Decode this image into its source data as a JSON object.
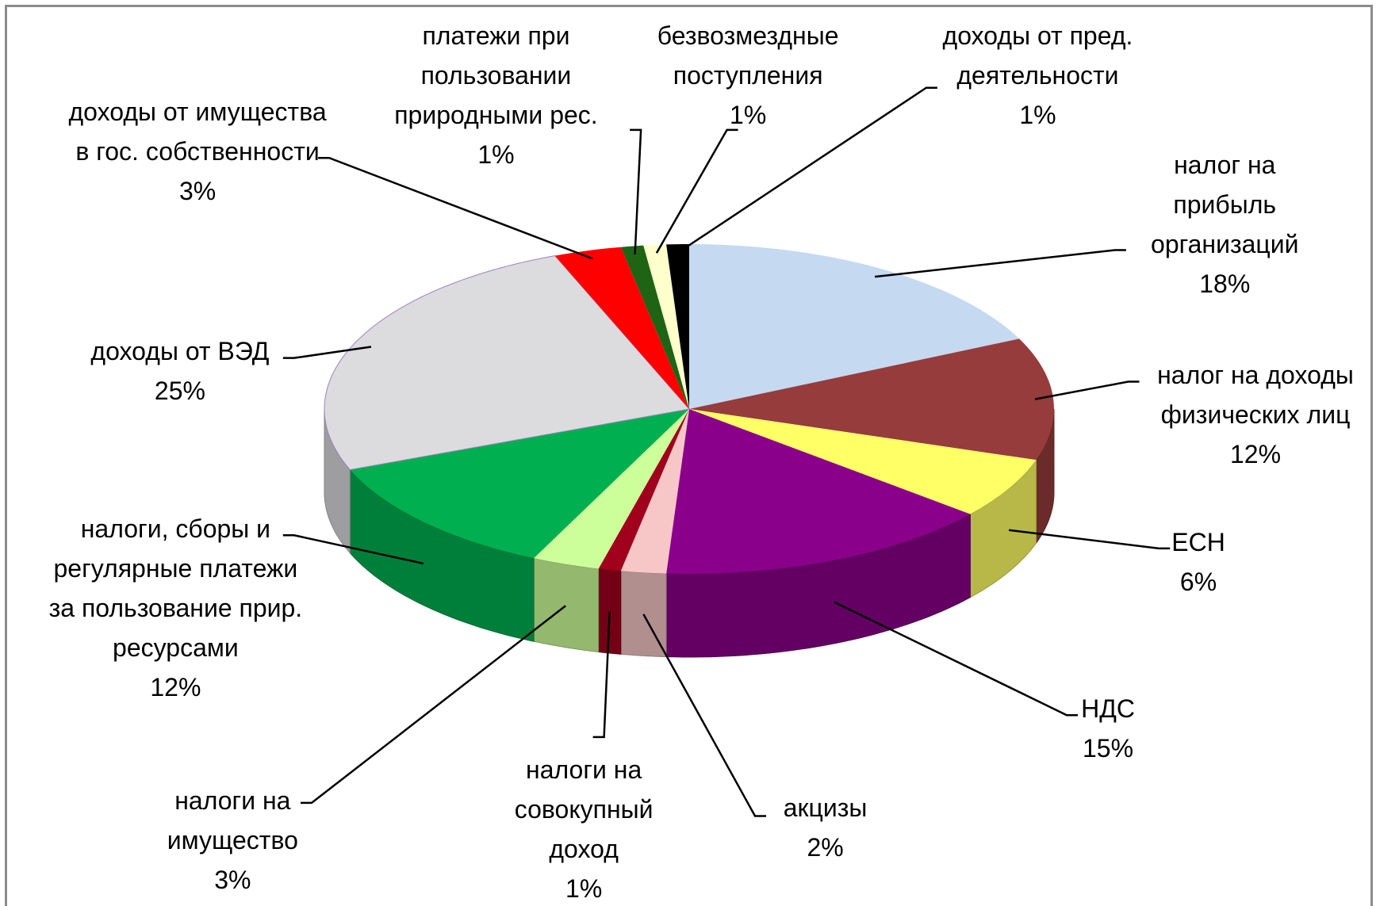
{
  "chart_data": {
    "type": "pie3d",
    "categories": [
      "налог на прибыль организаций",
      "налог на доходы физических лиц",
      "ЕСН",
      "НДС",
      "акцизы",
      "налоги на совокупный доход",
      "налоги на имущество",
      "налоги, сборы и регулярные платежи за пользование прир. ресурсами",
      "доходы от ВЭД",
      "доходы от имущества в гос. собственности",
      "платежи при пользовании природными рес.",
      "безвозмездные поступления",
      "доходы от пред. деятельности"
    ],
    "values": [
      18,
      12,
      6,
      15,
      2,
      1,
      3,
      12,
      25,
      3,
      1,
      1,
      1
    ],
    "value_labels": [
      "18%",
      "12%",
      "6%",
      "15%",
      "2%",
      "1%",
      "3%",
      "12%",
      "25%",
      "3%",
      "1%",
      "1%",
      "1%"
    ],
    "colors": [
      "#c5d9f1",
      "#963c3c",
      "#ffff66",
      "#8b008b",
      "#f7c6c6",
      "#a0001c",
      "#ccff99",
      "#00b050",
      "#dcdcde",
      "#ff0000",
      "#1e6414",
      "#ffffcc",
      "#000000"
    ]
  }
}
